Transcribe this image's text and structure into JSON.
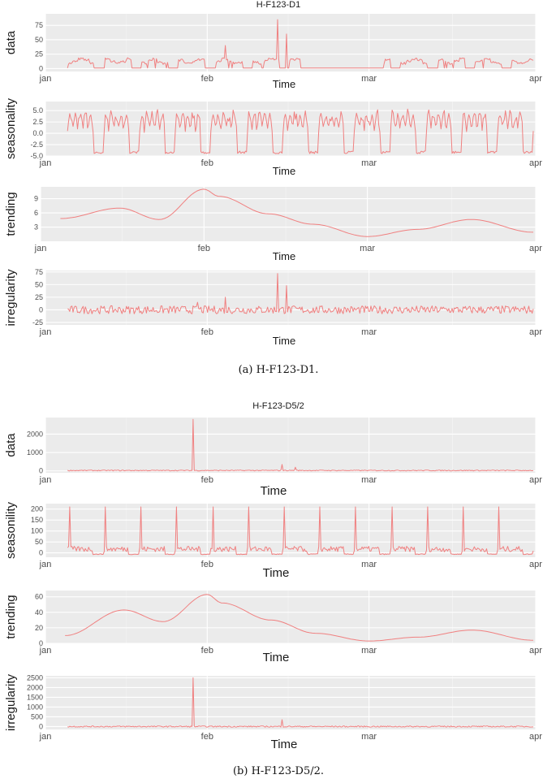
{
  "colors": {
    "series": "#f08080",
    "panel": "#ebebeb",
    "grid": "#ffffff"
  },
  "figures": [
    {
      "title": "H-F123-D1",
      "caption": "(a) H-F123-D1."
    },
    {
      "title": "H-F123-D5/2",
      "caption": "(b) H-F123-D5/2."
    }
  ],
  "chart_data": [
    {
      "type": "line",
      "figure": "a",
      "ylabel": "data",
      "xlabel": "Time",
      "x_ticks": [
        "jan",
        "feb",
        "mar",
        "apr"
      ],
      "y_ticks": [
        "0",
        "25",
        "50",
        "75"
      ],
      "ylim": [
        -5,
        95
      ],
      "grid": true,
      "series": [
        {
          "shape": "daily-blocks",
          "values_range": [
            0,
            20
          ],
          "spikes": [
            [
              0.34,
              40
            ],
            [
              0.45,
              85
            ],
            [
              0.47,
              60
            ]
          ]
        }
      ]
    },
    {
      "type": "line",
      "figure": "a",
      "ylabel": "seasonality",
      "xlabel": "Time",
      "x_ticks": [
        "jan",
        "feb",
        "mar",
        "apr"
      ],
      "y_ticks": [
        "-5.0",
        "-2.5",
        "0.0",
        "2.5",
        "5.0"
      ],
      "ylim": [
        -5,
        7
      ],
      "grid": true,
      "series": [
        {
          "shape": "weekly-periodic",
          "values_range": [
            -4.5,
            6.2
          ]
        }
      ]
    },
    {
      "type": "line",
      "figure": "a",
      "ylabel": "trending",
      "xlabel": "Time",
      "x_ticks": [
        "jan",
        "feb",
        "mar",
        "apr"
      ],
      "y_ticks": [
        "3",
        "6",
        "9"
      ],
      "ylim": [
        0,
        11.5
      ],
      "grid": true,
      "series": [
        {
          "x": [
            "jan 05",
            "jan 15",
            "jan 22",
            "jan 30",
            "feb 01",
            "feb 10",
            "feb 20",
            "mar 01",
            "mar 10",
            "mar 20",
            "mar 31"
          ],
          "y": [
            4.8,
            7.0,
            4.6,
            11.0,
            9.5,
            5.8,
            3.6,
            1.0,
            2.5,
            4.6,
            1.9
          ]
        }
      ]
    },
    {
      "type": "line",
      "figure": "a",
      "ylabel": "irregularity",
      "xlabel": "Time",
      "x_ticks": [
        "jan",
        "feb",
        "mar",
        "apr"
      ],
      "y_ticks": [
        "-25",
        "0",
        "25",
        "50",
        "75"
      ],
      "ylim": [
        -30,
        78
      ],
      "grid": true,
      "series": [
        {
          "shape": "noise",
          "values_range": [
            -10,
            10
          ],
          "spikes": [
            [
              0.28,
              15
            ],
            [
              0.34,
              25
            ],
            [
              0.45,
              72
            ],
            [
              0.47,
              48
            ]
          ]
        }
      ]
    },
    {
      "type": "line",
      "figure": "b",
      "ylabel": "data",
      "xlabel": "Time",
      "x_ticks": [
        "jan",
        "feb",
        "mar",
        "apr"
      ],
      "y_ticks": [
        "0",
        "1000",
        "2000"
      ],
      "ylim": [
        -100,
        2900
      ],
      "grid": true,
      "series": [
        {
          "shape": "low-flat",
          "values_range": [
            0,
            80
          ],
          "spikes": [
            [
              0.27,
              2800
            ],
            [
              0.46,
              350
            ],
            [
              0.49,
              200
            ]
          ]
        }
      ]
    },
    {
      "type": "line",
      "figure": "b",
      "ylabel": "seasonility",
      "xlabel": "Time",
      "x_ticks": [
        "jan",
        "feb",
        "mar",
        "apr"
      ],
      "y_ticks": [
        "0",
        "50",
        "100",
        "150",
        "200"
      ],
      "ylim": [
        -20,
        225
      ],
      "grid": true,
      "series": [
        {
          "shape": "weekly-spikes",
          "values_range": [
            -10,
            210
          ]
        }
      ]
    },
    {
      "type": "line",
      "figure": "b",
      "ylabel": "trending",
      "xlabel": "Time",
      "x_ticks": [
        "jan",
        "feb",
        "mar",
        "apr"
      ],
      "y_ticks": [
        "0",
        "20",
        "40",
        "60"
      ],
      "ylim": [
        0,
        68
      ],
      "grid": true,
      "series": [
        {
          "x": [
            "jan 05",
            "jan 15",
            "jan 22",
            "jan 30",
            "feb 01",
            "feb 10",
            "feb 20",
            "mar 01",
            "mar 10",
            "mar 20",
            "mar 31"
          ],
          "y": [
            10,
            43,
            28,
            63,
            52,
            30,
            13,
            3,
            8,
            17,
            4
          ]
        }
      ]
    },
    {
      "type": "line",
      "figure": "b",
      "ylabel": "irregularity",
      "xlabel": "Time",
      "x_ticks": [
        "jan",
        "feb",
        "mar",
        "apr"
      ],
      "y_ticks": [
        "0",
        "500",
        "1000",
        "1500",
        "2000",
        "2500"
      ],
      "ylim": [
        -150,
        2600
      ],
      "grid": true,
      "series": [
        {
          "shape": "noise",
          "values_range": [
            -40,
            40
          ],
          "spikes": [
            [
              0.27,
              2500
            ],
            [
              0.46,
              350
            ]
          ]
        }
      ]
    }
  ]
}
